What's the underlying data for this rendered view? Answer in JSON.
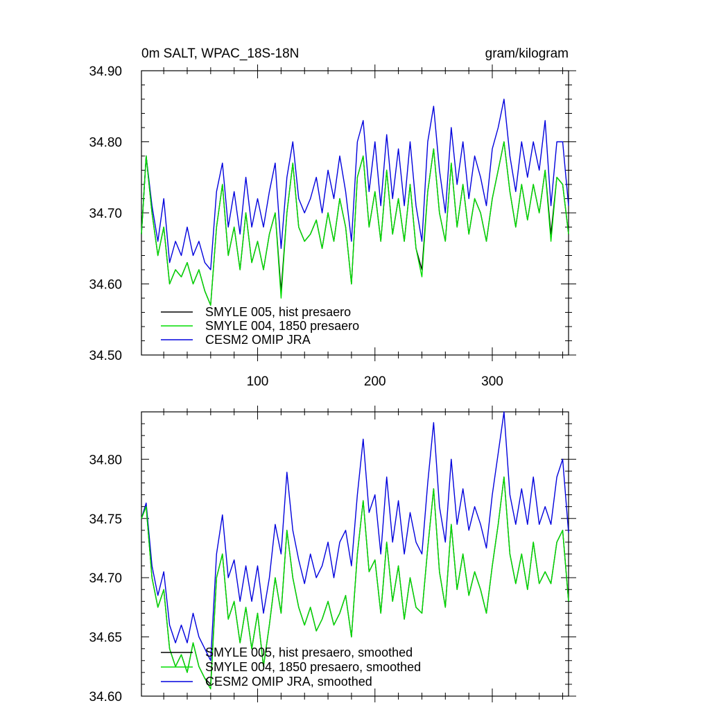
{
  "chart_data": [
    {
      "type": "line",
      "title": "0m SALT, WPAC_18S-18N",
      "units": "gram/kilogram",
      "xlim": [
        1,
        365
      ],
      "ylim": [
        34.5,
        34.9
      ],
      "x_ticks": [
        100,
        200,
        300
      ],
      "x_tick_labels": [
        "100",
        "200",
        "300"
      ],
      "y_ticks": [
        34.5,
        34.6,
        34.7,
        34.8,
        34.9
      ],
      "y_tick_labels": [
        "34.50",
        "34.60",
        "34.70",
        "34.80",
        "34.90"
      ],
      "legend_position": "bottom-left",
      "series": [
        {
          "name": "SMYLE 005, hist presaero",
          "color": "#000000",
          "x": [
            1,
            5,
            10,
            15,
            20,
            25,
            30,
            35,
            40,
            45,
            50,
            55,
            60,
            65,
            70,
            75,
            80,
            85,
            90,
            95,
            100,
            105,
            110,
            115,
            120,
            125,
            130,
            135,
            140,
            145,
            150,
            155,
            160,
            165,
            170,
            175,
            180,
            185,
            190,
            195,
            200,
            205,
            210,
            215,
            220,
            225,
            230,
            235,
            240,
            245,
            250,
            255,
            260,
            265,
            270,
            275,
            280,
            285,
            290,
            295,
            300,
            305,
            310,
            315,
            320,
            325,
            330,
            335,
            340,
            345,
            350,
            355,
            360,
            365
          ],
          "y": [
            34.67,
            34.78,
            34.7,
            34.64,
            34.68,
            34.6,
            34.62,
            34.61,
            34.63,
            34.6,
            34.62,
            34.59,
            34.57,
            34.68,
            34.74,
            34.64,
            34.68,
            34.62,
            34.7,
            34.63,
            34.66,
            34.62,
            34.67,
            34.7,
            34.59,
            34.7,
            34.77,
            34.68,
            34.66,
            34.67,
            34.69,
            34.65,
            34.7,
            34.66,
            34.72,
            34.68,
            34.6,
            34.75,
            34.78,
            34.68,
            34.73,
            34.66,
            34.76,
            34.67,
            34.72,
            34.66,
            34.74,
            34.65,
            34.62,
            34.73,
            34.79,
            34.7,
            34.66,
            34.77,
            34.68,
            34.74,
            34.67,
            34.72,
            34.7,
            34.66,
            34.72,
            34.76,
            34.8,
            34.73,
            34.68,
            34.74,
            34.69,
            34.74,
            34.7,
            34.76,
            34.67,
            34.75,
            34.74,
            34.67
          ]
        },
        {
          "name": "SMYLE 004, 1850 presaero",
          "color": "#00dd00",
          "x": [
            1,
            5,
            10,
            15,
            20,
            25,
            30,
            35,
            40,
            45,
            50,
            55,
            60,
            65,
            70,
            75,
            80,
            85,
            90,
            95,
            100,
            105,
            110,
            115,
            120,
            125,
            130,
            135,
            140,
            145,
            150,
            155,
            160,
            165,
            170,
            175,
            180,
            185,
            190,
            195,
            200,
            205,
            210,
            215,
            220,
            225,
            230,
            235,
            240,
            245,
            250,
            255,
            260,
            265,
            270,
            275,
            280,
            285,
            290,
            295,
            300,
            305,
            310,
            315,
            320,
            325,
            330,
            335,
            340,
            345,
            350,
            355,
            360,
            365
          ],
          "y": [
            34.67,
            34.78,
            34.7,
            34.64,
            34.68,
            34.6,
            34.62,
            34.61,
            34.63,
            34.6,
            34.62,
            34.59,
            34.57,
            34.68,
            34.74,
            34.64,
            34.68,
            34.62,
            34.7,
            34.63,
            34.66,
            34.62,
            34.67,
            34.7,
            34.58,
            34.7,
            34.77,
            34.68,
            34.66,
            34.67,
            34.69,
            34.65,
            34.7,
            34.66,
            34.72,
            34.68,
            34.6,
            34.75,
            34.78,
            34.68,
            34.73,
            34.66,
            34.76,
            34.67,
            34.72,
            34.66,
            34.74,
            34.65,
            34.61,
            34.73,
            34.79,
            34.7,
            34.66,
            34.77,
            34.68,
            34.74,
            34.67,
            34.72,
            34.7,
            34.66,
            34.72,
            34.76,
            34.8,
            34.73,
            34.68,
            34.74,
            34.69,
            34.74,
            34.7,
            34.76,
            34.66,
            34.75,
            34.74,
            34.67
          ]
        },
        {
          "name": "CESM2 OMIP JRA",
          "color": "#0000dd",
          "x": [
            1,
            5,
            10,
            15,
            20,
            25,
            30,
            35,
            40,
            45,
            50,
            55,
            60,
            65,
            70,
            75,
            80,
            85,
            90,
            95,
            100,
            105,
            110,
            115,
            120,
            125,
            130,
            135,
            140,
            145,
            150,
            155,
            160,
            165,
            170,
            175,
            180,
            185,
            190,
            195,
            200,
            205,
            210,
            215,
            220,
            225,
            230,
            235,
            240,
            245,
            250,
            255,
            260,
            265,
            270,
            275,
            280,
            285,
            290,
            295,
            300,
            305,
            310,
            315,
            320,
            325,
            330,
            335,
            340,
            345,
            350,
            355,
            360,
            365
          ],
          "y": [
            34.67,
            34.78,
            34.71,
            34.66,
            34.72,
            34.63,
            34.66,
            34.64,
            34.68,
            34.64,
            34.66,
            34.63,
            34.62,
            34.73,
            34.77,
            34.68,
            34.73,
            34.67,
            34.75,
            34.68,
            34.72,
            34.68,
            34.73,
            34.77,
            34.65,
            34.75,
            34.8,
            34.72,
            34.7,
            34.72,
            34.75,
            34.7,
            34.76,
            34.72,
            34.78,
            34.73,
            34.66,
            34.8,
            34.83,
            34.73,
            34.8,
            34.71,
            34.81,
            34.72,
            34.79,
            34.71,
            34.8,
            34.71,
            34.66,
            34.8,
            34.85,
            34.76,
            34.7,
            34.82,
            34.74,
            34.8,
            34.72,
            34.78,
            34.75,
            34.71,
            34.79,
            34.82,
            34.86,
            34.78,
            34.73,
            34.8,
            34.75,
            34.8,
            34.76,
            34.83,
            34.71,
            34.8,
            34.8,
            34.71
          ]
        }
      ]
    },
    {
      "type": "line",
      "xlim": [
        1,
        365
      ],
      "ylim": [
        34.6,
        34.84
      ],
      "x_ticks": [
        100,
        200,
        300
      ],
      "y_ticks": [
        34.6,
        34.65,
        34.7,
        34.75,
        34.8
      ],
      "y_tick_labels": [
        "34.60",
        "34.65",
        "34.70",
        "34.75",
        "34.80"
      ],
      "legend_position": "bottom-left",
      "series": [
        {
          "name": "SMYLE 005, hist presaero, smoothed",
          "color": "#000000",
          "x": [
            1,
            5,
            10,
            15,
            20,
            25,
            30,
            35,
            40,
            45,
            50,
            55,
            60,
            65,
            70,
            75,
            80,
            85,
            90,
            95,
            100,
            105,
            110,
            115,
            120,
            125,
            130,
            135,
            140,
            145,
            150,
            155,
            160,
            165,
            170,
            175,
            180,
            185,
            190,
            195,
            200,
            205,
            210,
            215,
            220,
            225,
            230,
            235,
            240,
            245,
            250,
            255,
            260,
            265,
            270,
            275,
            280,
            285,
            290,
            295,
            300,
            305,
            310,
            315,
            320,
            325,
            330,
            335,
            340,
            345,
            350,
            355,
            360,
            365
          ],
          "y": [
            34.75,
            34.76,
            34.7,
            34.675,
            34.69,
            34.64,
            34.625,
            34.635,
            34.62,
            34.645,
            34.625,
            34.615,
            34.61,
            34.7,
            34.72,
            34.665,
            34.68,
            34.645,
            34.675,
            34.64,
            34.67,
            34.625,
            34.66,
            34.7,
            34.67,
            34.74,
            34.7,
            34.675,
            34.66,
            34.675,
            34.655,
            34.665,
            34.68,
            34.66,
            34.67,
            34.685,
            34.65,
            34.72,
            34.765,
            34.705,
            34.715,
            34.67,
            34.73,
            34.68,
            34.71,
            34.665,
            34.7,
            34.675,
            34.67,
            34.725,
            34.775,
            34.705,
            34.675,
            34.745,
            34.69,
            34.72,
            34.685,
            34.705,
            34.69,
            34.67,
            34.71,
            34.745,
            34.785,
            34.72,
            34.695,
            34.72,
            34.69,
            34.73,
            34.695,
            34.705,
            34.695,
            34.73,
            34.74,
            34.68
          ]
        },
        {
          "name": "SMYLE 004, 1850 presaero, smoothed",
          "color": "#00dd00",
          "x": [
            1,
            5,
            10,
            15,
            20,
            25,
            30,
            35,
            40,
            45,
            50,
            55,
            60,
            65,
            70,
            75,
            80,
            85,
            90,
            95,
            100,
            105,
            110,
            115,
            120,
            125,
            130,
            135,
            140,
            145,
            150,
            155,
            160,
            165,
            170,
            175,
            180,
            185,
            190,
            195,
            200,
            205,
            210,
            215,
            220,
            225,
            230,
            235,
            240,
            245,
            250,
            255,
            260,
            265,
            270,
            275,
            280,
            285,
            290,
            295,
            300,
            305,
            310,
            315,
            320,
            325,
            330,
            335,
            340,
            345,
            350,
            355,
            360,
            365
          ],
          "y": [
            34.75,
            34.76,
            34.7,
            34.675,
            34.69,
            34.64,
            34.625,
            34.635,
            34.62,
            34.645,
            34.625,
            34.615,
            34.606,
            34.7,
            34.72,
            34.665,
            34.68,
            34.645,
            34.675,
            34.64,
            34.67,
            34.625,
            34.66,
            34.7,
            34.67,
            34.74,
            34.7,
            34.675,
            34.66,
            34.675,
            34.655,
            34.665,
            34.68,
            34.66,
            34.67,
            34.685,
            34.65,
            34.72,
            34.765,
            34.705,
            34.715,
            34.67,
            34.73,
            34.68,
            34.71,
            34.665,
            34.7,
            34.675,
            34.67,
            34.725,
            34.775,
            34.705,
            34.675,
            34.745,
            34.69,
            34.72,
            34.685,
            34.705,
            34.69,
            34.67,
            34.71,
            34.745,
            34.785,
            34.72,
            34.695,
            34.72,
            34.69,
            34.73,
            34.695,
            34.705,
            34.695,
            34.73,
            34.74,
            34.68
          ]
        },
        {
          "name": "CESM2 OMIP JRA, smoothed",
          "color": "#0000dd",
          "x": [
            1,
            5,
            10,
            15,
            20,
            25,
            30,
            35,
            40,
            45,
            50,
            55,
            60,
            65,
            70,
            75,
            80,
            85,
            90,
            95,
            100,
            105,
            110,
            115,
            120,
            125,
            130,
            135,
            140,
            145,
            150,
            155,
            160,
            165,
            170,
            175,
            180,
            185,
            190,
            195,
            200,
            205,
            210,
            215,
            220,
            225,
            230,
            235,
            240,
            245,
            250,
            255,
            260,
            265,
            270,
            275,
            280,
            285,
            290,
            295,
            300,
            305,
            310,
            315,
            320,
            325,
            330,
            335,
            340,
            345,
            350,
            355,
            360,
            365
          ],
          "y": [
            34.75,
            34.763,
            34.71,
            34.685,
            34.705,
            34.66,
            34.645,
            34.66,
            34.645,
            34.67,
            34.65,
            34.64,
            34.63,
            34.72,
            34.753,
            34.7,
            34.715,
            34.68,
            34.71,
            34.68,
            34.71,
            34.67,
            34.7,
            34.745,
            34.72,
            34.789,
            34.74,
            34.715,
            34.695,
            34.72,
            34.7,
            34.71,
            34.73,
            34.7,
            34.73,
            34.74,
            34.71,
            34.77,
            34.817,
            34.755,
            34.77,
            34.72,
            34.785,
            34.73,
            34.765,
            34.72,
            34.755,
            34.73,
            34.72,
            34.78,
            34.831,
            34.76,
            34.73,
            34.8,
            34.745,
            34.775,
            34.74,
            34.76,
            34.745,
            34.725,
            34.77,
            34.805,
            34.84,
            34.77,
            34.745,
            34.775,
            34.745,
            34.785,
            34.745,
            34.76,
            34.745,
            34.785,
            34.8,
            34.738
          ]
        }
      ]
    }
  ]
}
